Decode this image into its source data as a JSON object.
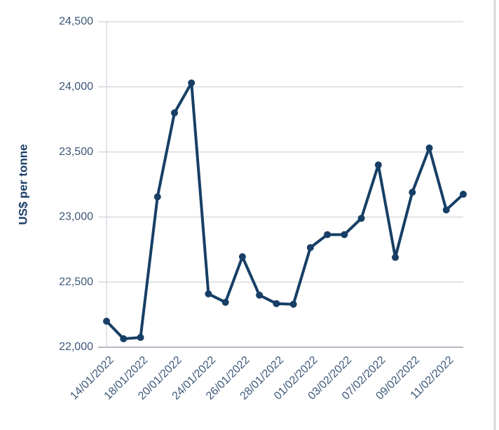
{
  "chart_data": {
    "type": "line",
    "y_label": "US$ per tonne",
    "categories": [
      "14/01/2022",
      null,
      "18/01/2022",
      null,
      "20/01/2022",
      null,
      "24/01/2022",
      null,
      "26/01/2022",
      null,
      "28/01/2022",
      null,
      "01/02/2022",
      null,
      "03/02/2022",
      null,
      "07/02/2022",
      null,
      "09/02/2022",
      null,
      "11/02/2022",
      null
    ],
    "values": [
      22200,
      22065,
      22075,
      23155,
      23800,
      24030,
      22410,
      22345,
      22695,
      22400,
      22335,
      22330,
      22765,
      22865,
      22865,
      22990,
      23400,
      22690,
      23190,
      23530,
      23055,
      23175
    ],
    "color": "#173f66",
    "ylim": [
      22000,
      24500
    ],
    "yticks": [
      {
        "value": 22000,
        "label": "22,000"
      },
      {
        "value": 22500,
        "label": "22,500"
      },
      {
        "value": 23000,
        "label": "23,000"
      },
      {
        "value": 23500,
        "label": "23,500"
      },
      {
        "value": 24000,
        "label": "24,000"
      },
      {
        "value": 24500,
        "label": "24,500"
      }
    ],
    "grid": true
  }
}
